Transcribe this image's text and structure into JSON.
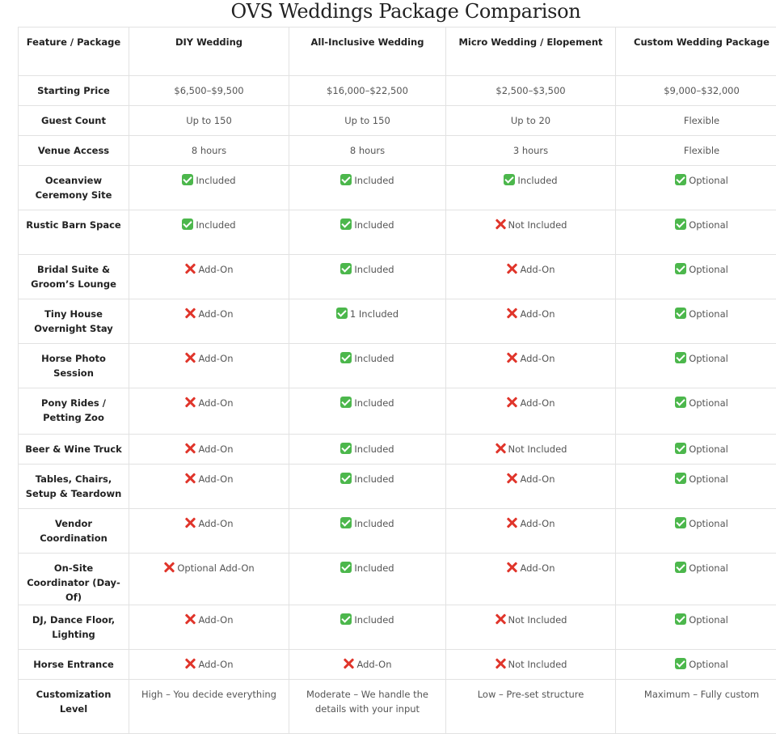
{
  "title": "OVS Weddings Package Comparison",
  "headers": [
    "Feature / Package",
    "DIY Wedding",
    "All-Inclusive Wedding",
    "Micro Wedding / Elopement",
    "Custom Wedding Package"
  ],
  "rows": [
    {
      "feature": "Starting Price",
      "cells": [
        {
          "icon": "",
          "text": "$6,500–$9,500"
        },
        {
          "icon": "",
          "text": "$16,000–$22,500"
        },
        {
          "icon": "",
          "text": "$2,500–$3,500"
        },
        {
          "icon": "",
          "text": "$9,000–$32,000"
        }
      ]
    },
    {
      "feature": "Guest Count",
      "cells": [
        {
          "icon": "",
          "text": "Up to 150"
        },
        {
          "icon": "",
          "text": "Up to 150"
        },
        {
          "icon": "",
          "text": "Up to 20"
        },
        {
          "icon": "",
          "text": "Flexible"
        }
      ]
    },
    {
      "feature": "Venue Access",
      "cells": [
        {
          "icon": "",
          "text": "8 hours"
        },
        {
          "icon": "",
          "text": "8 hours"
        },
        {
          "icon": "",
          "text": "3 hours"
        },
        {
          "icon": "",
          "text": "Flexible"
        }
      ]
    },
    {
      "feature": "Oceanview Ceremony Site",
      "cells": [
        {
          "icon": "check-icon",
          "text": "Included"
        },
        {
          "icon": "check-icon",
          "text": "Included"
        },
        {
          "icon": "check-icon",
          "text": "Included"
        },
        {
          "icon": "check-icon",
          "text": "Optional"
        }
      ]
    },
    {
      "feature": "Rustic Barn Space",
      "cells": [
        {
          "icon": "check-icon",
          "text": "Included"
        },
        {
          "icon": "check-icon",
          "text": "Included"
        },
        {
          "icon": "cross-icon",
          "text": "Not Included"
        },
        {
          "icon": "check-icon",
          "text": "Optional"
        }
      ]
    },
    {
      "feature": "Bridal Suite & Groom’s Lounge",
      "cells": [
        {
          "icon": "cross-icon",
          "text": "Add-On"
        },
        {
          "icon": "check-icon",
          "text": "Included"
        },
        {
          "icon": "cross-icon",
          "text": "Add-On"
        },
        {
          "icon": "check-icon",
          "text": "Optional"
        }
      ]
    },
    {
      "feature": "Tiny House Overnight Stay",
      "cells": [
        {
          "icon": "cross-icon",
          "text": "Add-On"
        },
        {
          "icon": "check-icon",
          "text": "1 Included"
        },
        {
          "icon": "cross-icon",
          "text": "Add-On"
        },
        {
          "icon": "check-icon",
          "text": "Optional"
        }
      ]
    },
    {
      "feature": "Horse Photo Session",
      "cells": [
        {
          "icon": "cross-icon",
          "text": "Add-On"
        },
        {
          "icon": "check-icon",
          "text": "Included"
        },
        {
          "icon": "cross-icon",
          "text": "Add-On"
        },
        {
          "icon": "check-icon",
          "text": "Optional"
        }
      ]
    },
    {
      "feature": "Pony Rides / Petting Zoo",
      "cells": [
        {
          "icon": "cross-icon",
          "text": "Add-On"
        },
        {
          "icon": "check-icon",
          "text": "Included"
        },
        {
          "icon": "cross-icon",
          "text": "Add-On"
        },
        {
          "icon": "check-icon",
          "text": "Optional"
        }
      ]
    },
    {
      "feature": "Beer & Wine Truck",
      "cells": [
        {
          "icon": "cross-icon",
          "text": "Add-On"
        },
        {
          "icon": "check-icon",
          "text": "Included"
        },
        {
          "icon": "cross-icon",
          "text": "Not Included"
        },
        {
          "icon": "check-icon",
          "text": "Optional"
        }
      ]
    },
    {
      "feature": "Tables, Chairs, Setup & Teardown",
      "cells": [
        {
          "icon": "cross-icon",
          "text": "Add-On"
        },
        {
          "icon": "check-icon",
          "text": "Included"
        },
        {
          "icon": "cross-icon",
          "text": "Add-On"
        },
        {
          "icon": "check-icon",
          "text": "Optional"
        }
      ]
    },
    {
      "feature": "Vendor Coordination",
      "cells": [
        {
          "icon": "cross-icon",
          "text": "Add-On"
        },
        {
          "icon": "check-icon",
          "text": "Included"
        },
        {
          "icon": "cross-icon",
          "text": "Add-On"
        },
        {
          "icon": "check-icon",
          "text": "Optional"
        }
      ]
    },
    {
      "feature": "On-Site Coordinator (Day-Of)",
      "cells": [
        {
          "icon": "cross-icon",
          "text": "Optional Add-On"
        },
        {
          "icon": "check-icon",
          "text": "Included"
        },
        {
          "icon": "cross-icon",
          "text": "Add-On"
        },
        {
          "icon": "check-icon",
          "text": "Optional"
        }
      ]
    },
    {
      "feature": "DJ, Dance Floor, Lighting",
      "cells": [
        {
          "icon": "cross-icon",
          "text": "Add-On"
        },
        {
          "icon": "check-icon",
          "text": "Included"
        },
        {
          "icon": "cross-icon",
          "text": "Not Included"
        },
        {
          "icon": "check-icon",
          "text": "Optional"
        }
      ]
    },
    {
      "feature": "Horse Entrance",
      "cells": [
        {
          "icon": "cross-icon",
          "text": "Add-On"
        },
        {
          "icon": "cross-icon",
          "text": "Add-On"
        },
        {
          "icon": "cross-icon",
          "text": "Not Included"
        },
        {
          "icon": "check-icon",
          "text": "Optional"
        }
      ]
    },
    {
      "feature": "Customization Level",
      "cells": [
        {
          "icon": "",
          "text": "High – You decide everything"
        },
        {
          "icon": "",
          "text": "Moderate – We handle the details with your input"
        },
        {
          "icon": "",
          "text": "Low – Pre-set structure"
        },
        {
          "icon": "",
          "text": "Maximum – Fully custom"
        }
      ]
    }
  ]
}
